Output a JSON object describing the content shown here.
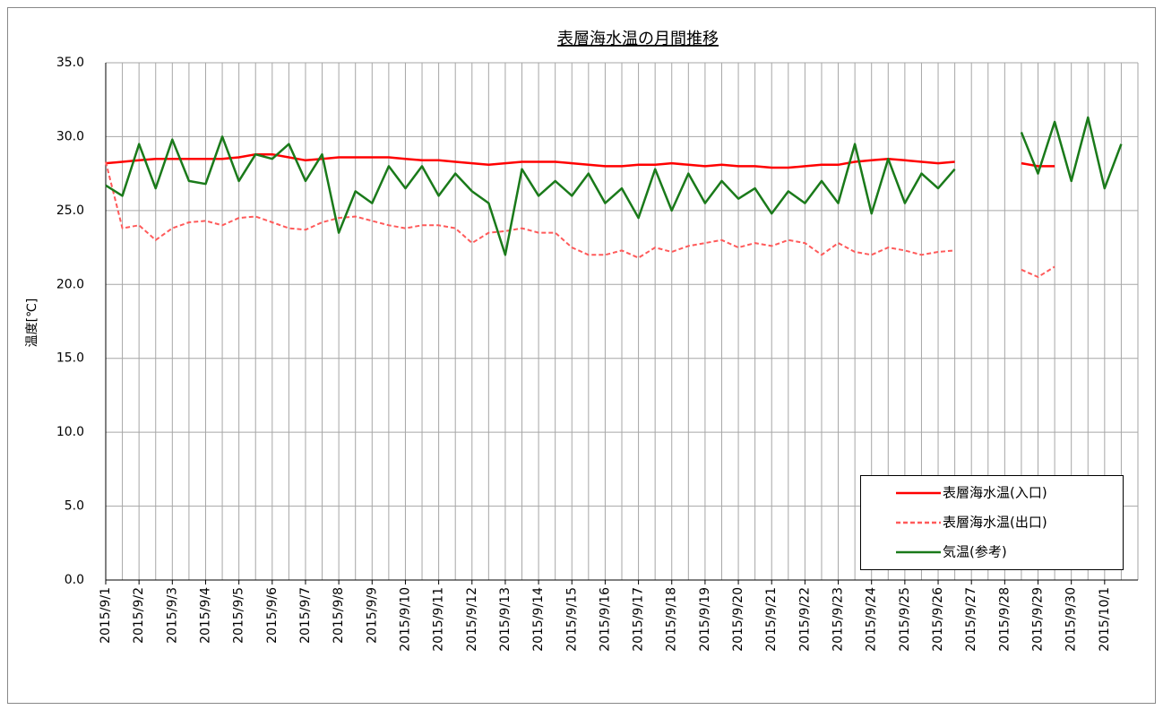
{
  "chart_data": {
    "type": "line",
    "title": "表層海水温の月間推移",
    "y_label": "温度[℃]",
    "categories": [
      "2015/9/1",
      null,
      "2015/9/2",
      null,
      "2015/9/3",
      null,
      "2015/9/4",
      null,
      "2015/9/5",
      null,
      "2015/9/6",
      null,
      "2015/9/7",
      null,
      "2015/9/8",
      null,
      "2015/9/9",
      null,
      "2015/9/10",
      null,
      "2015/9/11",
      null,
      "2015/9/12",
      null,
      "2015/9/13",
      null,
      "2015/9/14",
      null,
      "2015/9/15",
      null,
      "2015/9/16",
      null,
      "2015/9/17",
      null,
      "2015/9/18",
      null,
      "2015/9/19",
      null,
      "2015/9/20",
      null,
      "2015/9/21",
      null,
      "2015/9/22",
      null,
      "2015/9/23",
      null,
      "2015/9/24",
      null,
      "2015/9/25",
      null,
      "2015/9/26",
      null,
      "2015/9/27",
      null,
      "2015/9/28",
      null,
      "2015/9/29",
      null,
      "2015/9/30",
      null,
      "2015/10/1",
      null
    ],
    "series": [
      {
        "name": "表層海水温(入口)",
        "color": "#ff0000",
        "dash": false,
        "values": [
          28.2,
          28.3,
          28.4,
          28.5,
          28.5,
          28.5,
          28.5,
          28.5,
          28.6,
          28.8,
          28.8,
          28.6,
          28.4,
          28.5,
          28.6,
          28.6,
          28.6,
          28.6,
          28.5,
          28.4,
          28.4,
          28.3,
          28.2,
          28.1,
          28.2,
          28.3,
          28.3,
          28.3,
          28.2,
          28.1,
          28.0,
          28.0,
          28.1,
          28.1,
          28.2,
          28.1,
          28.0,
          28.1,
          28.0,
          28.0,
          27.9,
          27.9,
          28.0,
          28.1,
          28.1,
          28.3,
          28.4,
          28.5,
          28.4,
          28.3,
          28.2,
          28.3,
          null,
          null,
          null,
          28.2,
          28.0,
          28.0,
          null,
          null,
          null,
          null
        ]
      },
      {
        "name": "表層海水温(出口)",
        "color": "#ff5a5a",
        "dash": true,
        "values": [
          28.3,
          23.8,
          24.0,
          23.0,
          23.8,
          24.2,
          24.3,
          24.0,
          24.5,
          24.6,
          24.2,
          23.8,
          23.7,
          24.2,
          24.5,
          24.6,
          24.3,
          24.0,
          23.8,
          24.0,
          24.0,
          23.8,
          22.8,
          23.5,
          23.6,
          23.8,
          23.5,
          23.5,
          22.5,
          22.0,
          22.0,
          22.3,
          21.8,
          22.5,
          22.2,
          22.6,
          22.8,
          23.0,
          22.5,
          22.8,
          22.6,
          23.0,
          22.8,
          22.0,
          22.8,
          22.2,
          22.0,
          22.5,
          22.3,
          22.0,
          22.2,
          22.3,
          null,
          null,
          null,
          21.0,
          20.5,
          21.2,
          null,
          null,
          null,
          null
        ]
      },
      {
        "name": "気温(参考)",
        "color": "#1a7a1a",
        "dash": false,
        "values": [
          26.7,
          26.0,
          29.5,
          26.5,
          29.8,
          27.0,
          26.8,
          30.0,
          27.0,
          28.8,
          28.5,
          29.5,
          27.0,
          28.8,
          23.5,
          26.3,
          25.5,
          28.0,
          26.5,
          28.0,
          26.0,
          27.5,
          26.3,
          25.5,
          22.0,
          27.8,
          26.0,
          27.0,
          26.0,
          27.5,
          25.5,
          26.5,
          24.5,
          27.8,
          25.0,
          27.5,
          25.5,
          27.0,
          25.8,
          26.5,
          24.8,
          26.3,
          25.5,
          27.0,
          25.5,
          29.5,
          24.8,
          28.5,
          25.5,
          27.5,
          26.5,
          27.8,
          null,
          null,
          null,
          30.3,
          27.5,
          31.0,
          27.0,
          31.3,
          26.5,
          29.5
        ]
      }
    ],
    "ylim": [
      0,
      35
    ],
    "yticks": [
      {
        "value": 0,
        "label": "0.0"
      },
      {
        "value": 5,
        "label": "5.0"
      },
      {
        "value": 10,
        "label": "10.0"
      },
      {
        "value": 15,
        "label": "15.0"
      },
      {
        "value": 20,
        "label": "20.0"
      },
      {
        "value": 25,
        "label": "25.0"
      },
      {
        "value": 30,
        "label": "30.0"
      },
      {
        "value": 35,
        "label": "35.0"
      }
    ],
    "grid": true,
    "legend": "lower right"
  }
}
